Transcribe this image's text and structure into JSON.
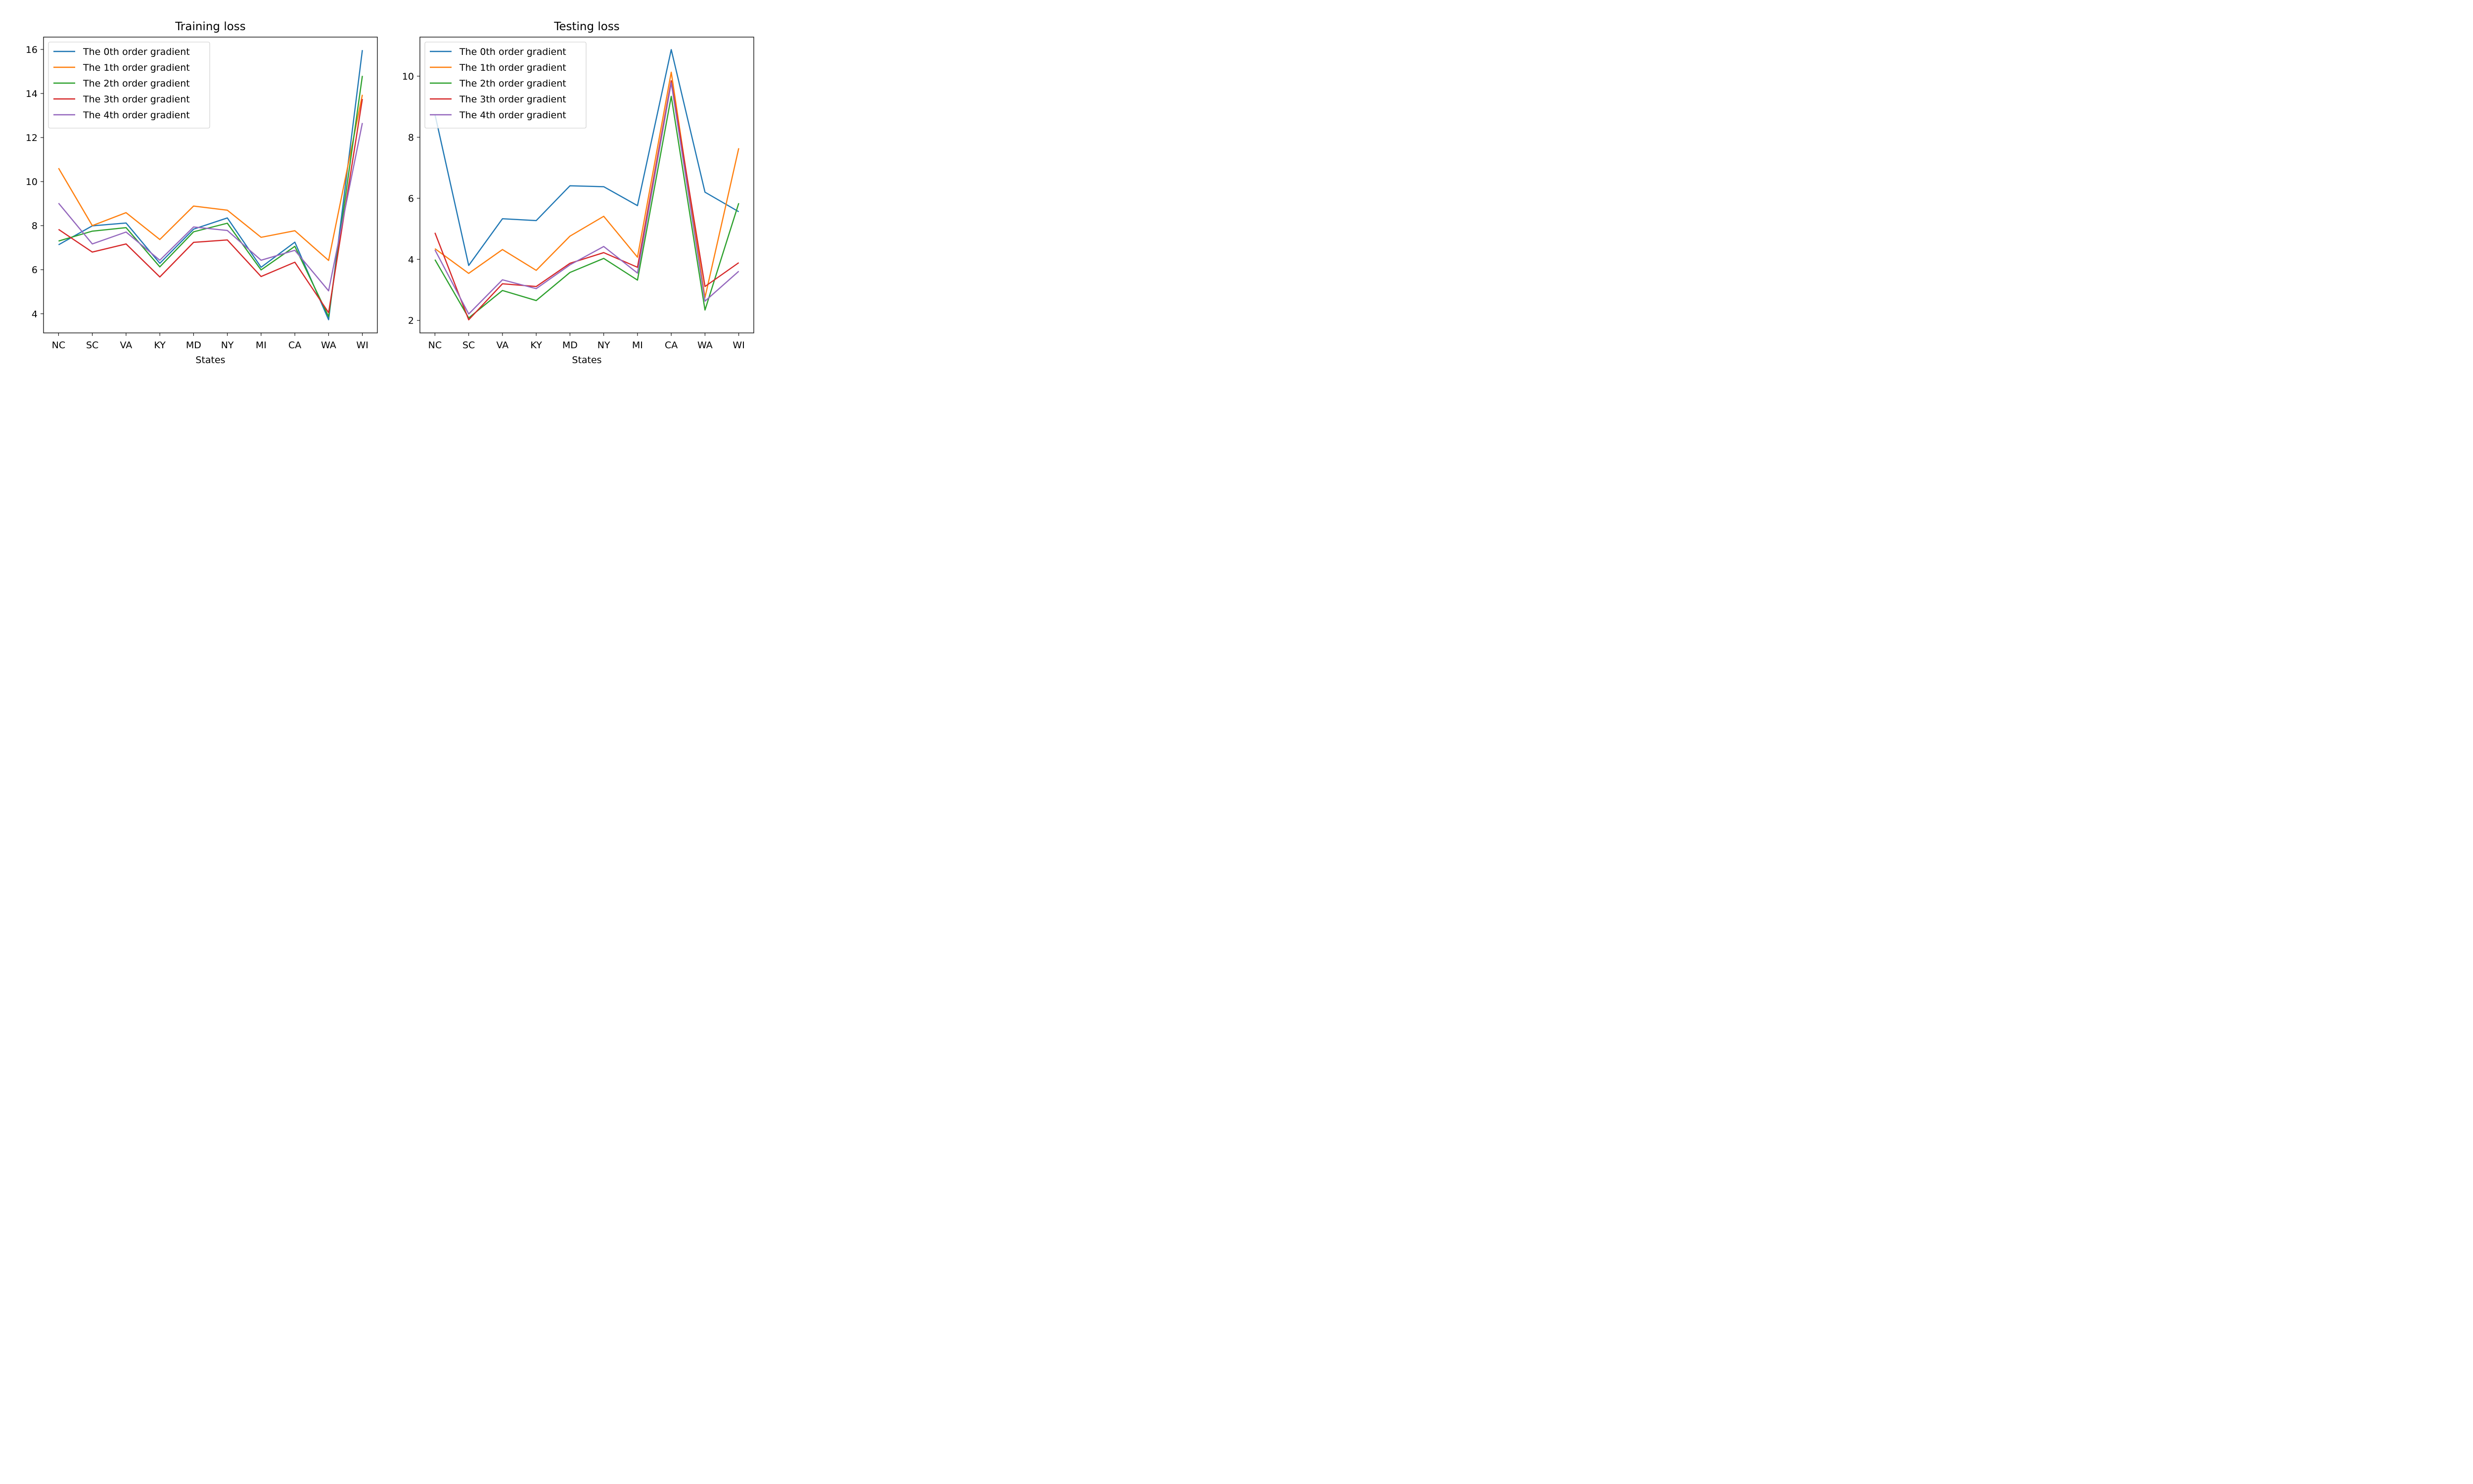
{
  "chart_data": [
    {
      "type": "line",
      "title": "Training loss",
      "xlabel": "States",
      "ylabel": "",
      "categories": [
        "NC",
        "SC",
        "VA",
        "KY",
        "MD",
        "NY",
        "MI",
        "CA",
        "WA",
        "WI"
      ],
      "ylim": [
        3.13,
        16.56
      ],
      "yticks": [
        4,
        6,
        8,
        10,
        12,
        14,
        16
      ],
      "grid": false,
      "legend_position": "top-left",
      "series": [
        {
          "name": "The 0th order gradient",
          "color": "#1f77b4",
          "values": [
            7.13,
            7.99,
            8.12,
            6.29,
            7.84,
            8.35,
            6.11,
            7.25,
            3.73,
            15.97
          ]
        },
        {
          "name": "The 1th order gradient",
          "color": "#ff7f0e",
          "values": [
            10.61,
            8.0,
            8.59,
            7.37,
            8.89,
            8.7,
            7.47,
            7.77,
            6.42,
            13.94
          ]
        },
        {
          "name": "The 2th order gradient",
          "color": "#2ca02c",
          "values": [
            7.3,
            7.75,
            7.91,
            6.13,
            7.72,
            8.11,
            5.99,
            7.06,
            3.87,
            14.8
          ]
        },
        {
          "name": "The 3th order gradient",
          "color": "#d62728",
          "values": [
            7.83,
            6.8,
            7.17,
            5.67,
            7.24,
            7.35,
            5.69,
            6.34,
            4.05,
            13.75
          ]
        },
        {
          "name": "The 4th order gradient",
          "color": "#9467bd",
          "values": [
            9.02,
            7.17,
            7.71,
            6.43,
            7.94,
            7.78,
            6.43,
            6.88,
            5.04,
            12.66
          ]
        }
      ]
    },
    {
      "type": "line",
      "title": "Testing loss",
      "xlabel": "States",
      "ylabel": "",
      "categories": [
        "NC",
        "SC",
        "VA",
        "KY",
        "MD",
        "NY",
        "MI",
        "CA",
        "WA",
        "WI"
      ],
      "ylim": [
        1.59,
        11.28
      ],
      "yticks": [
        2,
        4,
        6,
        8,
        10
      ],
      "grid": false,
      "legend_position": "top-left",
      "series": [
        {
          "name": "The 0th order gradient",
          "color": "#1f77b4",
          "values": [
            8.75,
            3.8,
            5.33,
            5.27,
            6.41,
            6.38,
            5.76,
            10.87,
            6.2,
            5.56
          ]
        },
        {
          "name": "The 1th order gradient",
          "color": "#ff7f0e",
          "values": [
            4.35,
            3.54,
            4.32,
            3.64,
            4.76,
            5.41,
            4.07,
            10.13,
            2.75,
            7.64
          ]
        },
        {
          "name": "The 2th order gradient",
          "color": "#2ca02c",
          "values": [
            3.99,
            2.08,
            2.98,
            2.65,
            3.57,
            4.03,
            3.32,
            9.34,
            2.34,
            5.84
          ]
        },
        {
          "name": "The 3th order gradient",
          "color": "#d62728",
          "values": [
            4.87,
            2.02,
            3.2,
            3.11,
            3.87,
            4.22,
            3.74,
            9.85,
            3.11,
            3.89
          ]
        },
        {
          "name": "The 4th order gradient",
          "color": "#9467bd",
          "values": [
            4.31,
            2.21,
            3.33,
            3.04,
            3.82,
            4.42,
            3.55,
            9.78,
            2.63,
            3.61
          ]
        }
      ]
    }
  ]
}
